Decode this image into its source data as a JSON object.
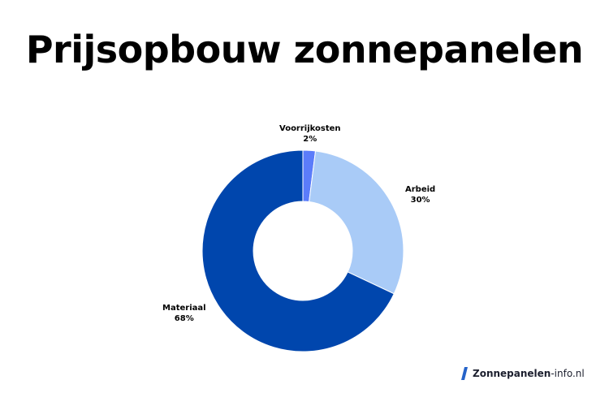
{
  "chart_data": {
    "type": "pie",
    "title": "Prijsopbouw zonnepanelen",
    "donut": true,
    "slices": [
      {
        "label": "Voorrijkosten",
        "value": 2,
        "value_label": "2%",
        "color": "#5b7cfa"
      },
      {
        "label": "Arbeid",
        "value": 30,
        "value_label": "30%",
        "color": "#a9cbf7"
      },
      {
        "label": "Materiaal",
        "value": 68,
        "value_label": "68%",
        "color": "#0046ad"
      }
    ]
  },
  "brand": {
    "name": "Zonnepanelen",
    "suffix": "-info.nl",
    "logo_icon": "logo-mark-icon",
    "logo_color": "#2563c9"
  }
}
